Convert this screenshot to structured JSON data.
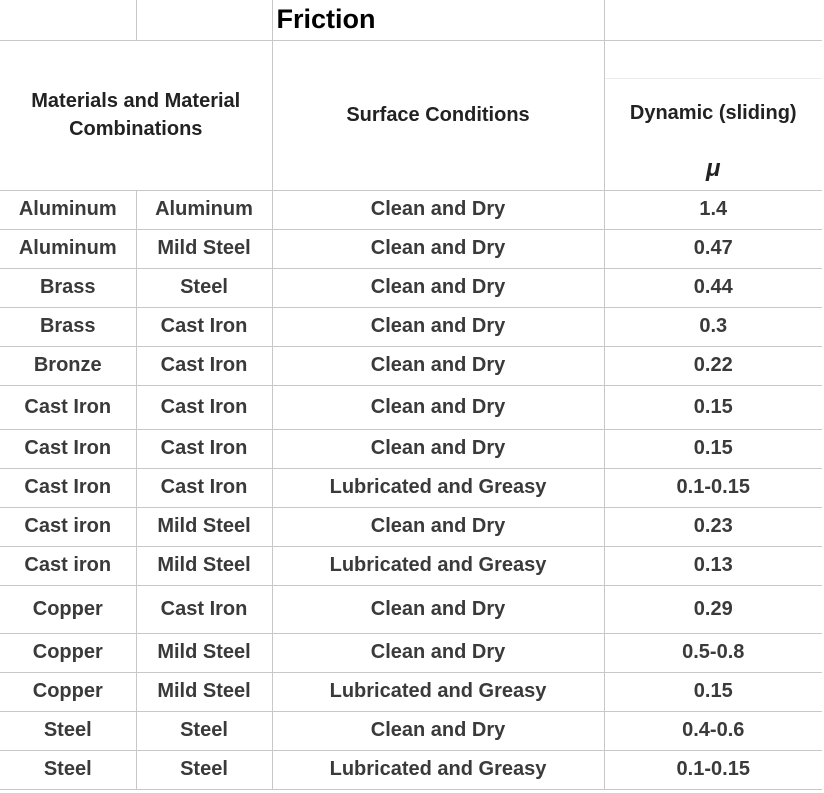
{
  "title": "Friction",
  "headers": {
    "materials": "Materials and Material Combinations",
    "surface": "Surface Conditions",
    "dynamic": "Dynamic (sliding)",
    "symbol": "μ"
  },
  "rows": [
    {
      "m1": "Aluminum",
      "m2": "Aluminum",
      "cond": "Clean and Dry",
      "mu": "1.4"
    },
    {
      "m1": "Aluminum",
      "m2": "Mild Steel",
      "cond": "Clean and Dry",
      "mu": "0.47"
    },
    {
      "m1": "Brass",
      "m2": "Steel",
      "cond": "Clean and Dry",
      "mu": "0.44"
    },
    {
      "m1": "Brass",
      "m2": "Cast Iron",
      "cond": "Clean and Dry",
      "mu": "0.3"
    },
    {
      "m1": "Bronze",
      "m2": "Cast Iron",
      "cond": "Clean and Dry",
      "mu": "0.22"
    },
    {
      "m1": "Cast Iron",
      "m2": "Cast Iron",
      "cond": "Clean and Dry",
      "mu": "0.15"
    },
    {
      "m1": "Cast Iron",
      "m2": "Cast Iron",
      "cond": "Clean and Dry",
      "mu": "0.15"
    },
    {
      "m1": "Cast Iron",
      "m2": "Cast Iron",
      "cond": "Lubricated and Greasy",
      "mu": "0.1-0.15"
    },
    {
      "m1": "Cast iron",
      "m2": "Mild Steel",
      "cond": "Clean and Dry",
      "mu": "0.23"
    },
    {
      "m1": "Cast iron",
      "m2": "Mild Steel",
      "cond": "Lubricated and Greasy",
      "mu": "0.13"
    },
    {
      "m1": "Copper",
      "m2": "Cast Iron",
      "cond": "Clean and Dry",
      "mu": "0.29"
    },
    {
      "m1": "Copper",
      "m2": "Mild Steel",
      "cond": "Clean and Dry",
      "mu": "0.5-0.8"
    },
    {
      "m1": "Copper",
      "m2": "Mild Steel",
      "cond": "Lubricated and Greasy",
      "mu": "0.15"
    },
    {
      "m1": "Steel",
      "m2": "Steel",
      "cond": "Clean and Dry",
      "mu": "0.4-0.6"
    },
    {
      "m1": "Steel",
      "m2": "Steel",
      "cond": "Lubricated and Greasy",
      "mu": "0.1-0.15"
    }
  ]
}
